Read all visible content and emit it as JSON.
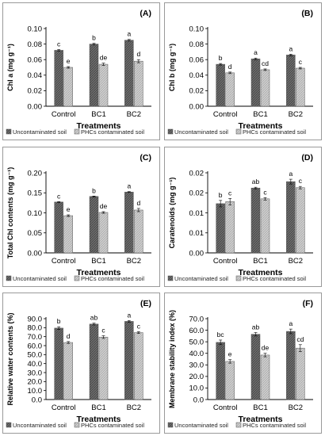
{
  "colors": {
    "uncontaminated_bar": "#6e6e6e",
    "contaminated_bar": "#cfcfcf",
    "axis": "#000000",
    "panel_border": "#9a9a9a"
  },
  "legend": {
    "uncontaminated": "Uncontaminated soil",
    "contaminated": "PHCs contaminated soil"
  },
  "chart_data": [
    {
      "type": "bar",
      "panel_label": "(A)",
      "ylabel": "Chl a (mg g⁻¹)",
      "xlabel": "Treatments",
      "categories": [
        "Control",
        "BC1",
        "BC2"
      ],
      "ylim": [
        0,
        0.1
      ],
      "yticks": [
        "0.00",
        "0.02",
        "0.04",
        "0.06",
        "0.08",
        "0.10"
      ],
      "series": [
        {
          "name": "Uncontaminated soil",
          "values": [
            0.072,
            0.08,
            0.085
          ],
          "errors": [
            0.001,
            0.001,
            0.001
          ],
          "letters": [
            "c",
            "b",
            "a"
          ]
        },
        {
          "name": "PHCs contaminated soil",
          "values": [
            0.05,
            0.054,
            0.058
          ],
          "errors": [
            0.001,
            0.0015,
            0.002
          ],
          "letters": [
            "e",
            "de",
            "d"
          ]
        }
      ]
    },
    {
      "type": "bar",
      "panel_label": "(B)",
      "ylabel": "Chl b (mg g⁻¹)",
      "xlabel": "Treatments",
      "categories": [
        "Control",
        "BC1",
        "BC2"
      ],
      "ylim": [
        0,
        0.1
      ],
      "yticks": [
        "0.00",
        "0.02",
        "0.04",
        "0.06",
        "0.08",
        "0.10"
      ],
      "series": [
        {
          "name": "Uncontaminated soil",
          "values": [
            0.054,
            0.061,
            0.066
          ],
          "errors": [
            0.001,
            0.001,
            0.001
          ],
          "letters": [
            "b",
            "a",
            "a"
          ]
        },
        {
          "name": "PHCs contaminated soil",
          "values": [
            0.043,
            0.047,
            0.049
          ],
          "errors": [
            0.001,
            0.001,
            0.001
          ],
          "letters": [
            "d",
            "cd",
            "c"
          ]
        }
      ]
    },
    {
      "type": "bar",
      "panel_label": "(C)",
      "ylabel": "Total Chl contents (mg g⁻¹)",
      "xlabel": "Treatments",
      "categories": [
        "Control",
        "BC1",
        "BC2"
      ],
      "ylim": [
        0,
        0.2
      ],
      "yticks": [
        "0.00",
        "0.05",
        "0.10",
        "0.15",
        "0.20"
      ],
      "series": [
        {
          "name": "Uncontaminated soil",
          "values": [
            0.127,
            0.141,
            0.152
          ],
          "errors": [
            0.001,
            0.001,
            0.001
          ],
          "letters": [
            "c",
            "b",
            "a"
          ]
        },
        {
          "name": "PHCs contaminated soil",
          "values": [
            0.093,
            0.101,
            0.107
          ],
          "errors": [
            0.002,
            0.002,
            0.004
          ],
          "letters": [
            "e",
            "de",
            "d"
          ]
        }
      ]
    },
    {
      "type": "bar",
      "panel_label": "(D)",
      "ylabel": "Caratenoids (mg g⁻¹)",
      "xlabel": "Treatments",
      "categories": [
        "Control",
        "BC1",
        "BC2"
      ],
      "ylim": [
        0,
        0.02
      ],
      "yticks": [
        "0.00",
        "0.01",
        "0.01",
        "0.02",
        "0.02"
      ],
      "series": [
        {
          "name": "Uncontaminated soil",
          "values": [
            0.0123,
            0.0162,
            0.0178
          ],
          "errors": [
            0.0008,
            0.0002,
            0.0006
          ],
          "letters": [
            "b",
            "ab",
            "a"
          ]
        },
        {
          "name": "PHCs contaminated soil",
          "values": [
            0.0128,
            0.0135,
            0.0163
          ],
          "errors": [
            0.0008,
            0.0003,
            0.0003
          ],
          "letters": [
            "c",
            "c",
            "c"
          ]
        }
      ]
    },
    {
      "type": "bar",
      "panel_label": "(E)",
      "ylabel": "Relative water contents (%)",
      "xlabel": "Treatments",
      "categories": [
        "Control",
        "BC1",
        "BC2"
      ],
      "ylim": [
        0,
        90
      ],
      "yticks": [
        "0.0",
        "10.0",
        "20.0",
        "30.0",
        "40.0",
        "50.0",
        "60.0",
        "70.0",
        "80.0",
        "90.0"
      ],
      "series": [
        {
          "name": "Uncontaminated soil",
          "values": [
            79.5,
            84.0,
            87.0
          ],
          "errors": [
            1.5,
            1.0,
            1.0
          ],
          "letters": [
            "b",
            "ab",
            "a"
          ]
        },
        {
          "name": "PHCs contaminated soil",
          "values": [
            63.5,
            69.5,
            74.5
          ],
          "errors": [
            1.0,
            1.5,
            1.0
          ],
          "letters": [
            "d",
            "c",
            "c"
          ]
        }
      ]
    },
    {
      "type": "bar",
      "panel_label": "(F)",
      "ylabel": "Membrane stability index (%)",
      "xlabel": "Treatments",
      "categories": [
        "Control",
        "BC1",
        "BC2"
      ],
      "ylim": [
        0,
        70
      ],
      "yticks": [
        "0.0",
        "10.0",
        "20.0",
        "30.0",
        "40.0",
        "50.0",
        "60.0",
        "70.0"
      ],
      "series": [
        {
          "name": "Uncontaminated soil",
          "values": [
            49.5,
            56.5,
            59.0
          ],
          "errors": [
            2.0,
            1.5,
            2.0
          ],
          "letters": [
            "bc",
            "ab",
            "a"
          ]
        },
        {
          "name": "PHCs contaminated soil",
          "values": [
            33.0,
            38.5,
            44.5
          ],
          "errors": [
            1.5,
            1.5,
            3.0
          ],
          "letters": [
            "e",
            "de",
            "cd"
          ]
        }
      ]
    }
  ]
}
